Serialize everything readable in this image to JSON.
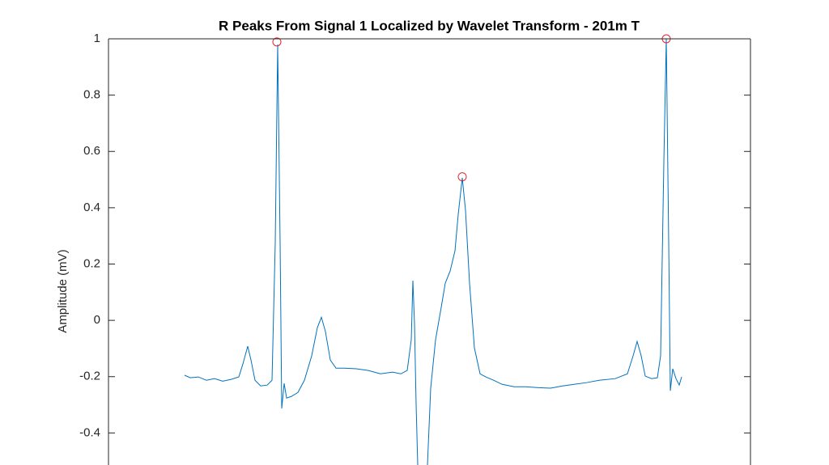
{
  "chart_data": {
    "type": "line",
    "title": "R Peaks From Signal 1 Localized by Wavelet Transform - 201m T",
    "y_label": "Amplitude (mV)",
    "xlim": [
      0,
      793
    ],
    "ylim": [
      -0.6,
      1
    ],
    "yticks": [
      -0.4,
      -0.2,
      0,
      0.2,
      0.4,
      0.6,
      0.8,
      1
    ],
    "series": [
      {
        "color": "#0072bd",
        "x": [
          94,
          101,
          111,
          121,
          131,
          141,
          151,
          161,
          166,
          172,
          176,
          181,
          188,
          196,
          202,
          206,
          209,
          212,
          214,
          217,
          220,
          226,
          234,
          242,
          251,
          258,
          263,
          268,
          274,
          281,
          291,
          306,
          321,
          336,
          351,
          361,
          369,
          374,
          376,
          378,
          380,
          382,
          385,
          391,
          394,
          398,
          404,
          411,
          416,
          422,
          428,
          432,
          437,
          441,
          446,
          452,
          459,
          466,
          476,
          486,
          501,
          516,
          531,
          546,
          561,
          576,
          591,
          606,
          626,
          641,
          648,
          653,
          658,
          663,
          671,
          678,
          682,
          686,
          689,
          692,
          694,
          697,
          701,
          705,
          708
        ],
        "values": [
          -0.195,
          -0.204,
          -0.201,
          -0.213,
          -0.207,
          -0.216,
          -0.21,
          -0.201,
          -0.155,
          -0.092,
          -0.141,
          -0.213,
          -0.233,
          -0.23,
          -0.213,
          0.276,
          0.98,
          0.276,
          -0.313,
          -0.224,
          -0.276,
          -0.27,
          -0.256,
          -0.213,
          -0.126,
          -0.026,
          0.011,
          -0.04,
          -0.141,
          -0.17,
          -0.17,
          -0.172,
          -0.178,
          -0.19,
          -0.184,
          -0.19,
          -0.178,
          -0.069,
          0.141,
          -0.011,
          -0.299,
          -0.514,
          -0.57,
          -0.58,
          -0.514,
          -0.241,
          -0.069,
          0.046,
          0.132,
          0.175,
          0.247,
          0.376,
          0.506,
          0.391,
          0.132,
          -0.098,
          -0.19,
          -0.201,
          -0.213,
          -0.227,
          -0.236,
          -0.236,
          -0.239,
          -0.241,
          -0.233,
          -0.227,
          -0.221,
          -0.213,
          -0.207,
          -0.19,
          -0.126,
          -0.075,
          -0.126,
          -0.198,
          -0.207,
          -0.204,
          -0.126,
          0.563,
          1.0,
          0.276,
          -0.25,
          -0.172,
          -0.207,
          -0.23,
          -0.201
        ]
      },
      {
        "type": "scatter",
        "color": "#e3242b",
        "x": [
          208,
          437,
          689
        ],
        "values": [
          0.989,
          0.51,
          1.0
        ]
      }
    ]
  }
}
